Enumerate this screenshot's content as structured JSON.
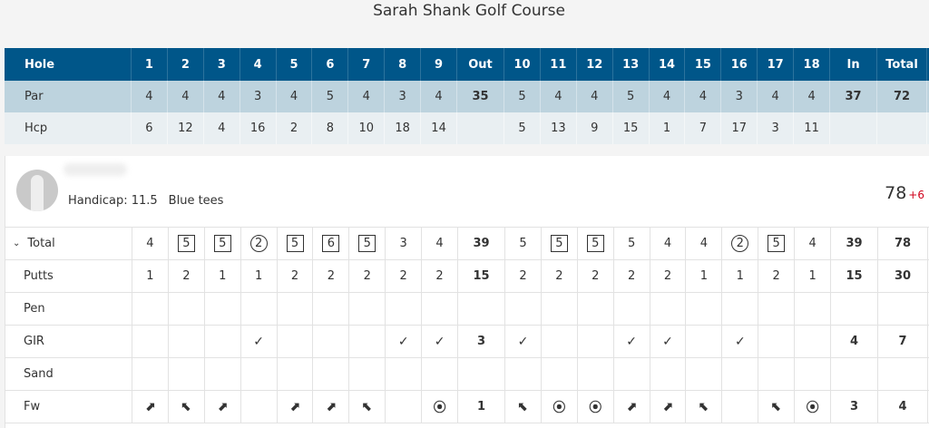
{
  "title": "Sarah Shank Golf Course",
  "colors": {
    "header": "#005689",
    "par_row": "#bdd3de",
    "hcp_row": "#e9eff2",
    "over_par": "#d0021b"
  },
  "course": {
    "header": [
      "Hole",
      "1",
      "2",
      "3",
      "4",
      "5",
      "6",
      "7",
      "8",
      "9",
      "Out",
      "10",
      "11",
      "12",
      "13",
      "14",
      "15",
      "16",
      "17",
      "18",
      "In",
      "Total"
    ],
    "par": [
      "Par",
      "4",
      "4",
      "4",
      "3",
      "4",
      "5",
      "4",
      "3",
      "4",
      "35",
      "5",
      "4",
      "4",
      "5",
      "4",
      "4",
      "3",
      "4",
      "4",
      "37",
      "72"
    ],
    "hcp": [
      "Hcp",
      "6",
      "12",
      "4",
      "16",
      "2",
      "8",
      "10",
      "18",
      "14",
      "",
      "5",
      "13",
      "9",
      "15",
      "1",
      "7",
      "17",
      "3",
      "11",
      "",
      ""
    ]
  },
  "player": {
    "handicap": "Handicap: 11.5",
    "tees": "Blue tees",
    "score": "78",
    "to_par": "+6"
  },
  "rows": [
    {
      "label": "Total",
      "collapsible": true,
      "cells": [
        {
          "v": "4"
        },
        {
          "v": "5",
          "m": "box"
        },
        {
          "v": "5",
          "m": "box"
        },
        {
          "v": "2",
          "m": "circle"
        },
        {
          "v": "5",
          "m": "box"
        },
        {
          "v": "6",
          "m": "box"
        },
        {
          "v": "5",
          "m": "box"
        },
        {
          "v": "3"
        },
        {
          "v": "4"
        },
        {
          "v": "39"
        },
        {
          "v": "5"
        },
        {
          "v": "5",
          "m": "box"
        },
        {
          "v": "5",
          "m": "box"
        },
        {
          "v": "5"
        },
        {
          "v": "4"
        },
        {
          "v": "4"
        },
        {
          "v": "2",
          "m": "circle"
        },
        {
          "v": "5",
          "m": "box"
        },
        {
          "v": "4"
        },
        {
          "v": "39"
        },
        {
          "v": "78"
        }
      ]
    },
    {
      "label": "Putts",
      "cells": [
        {
          "v": "1"
        },
        {
          "v": "2"
        },
        {
          "v": "1"
        },
        {
          "v": "1"
        },
        {
          "v": "2"
        },
        {
          "v": "2"
        },
        {
          "v": "2"
        },
        {
          "v": "2"
        },
        {
          "v": "2"
        },
        {
          "v": "15"
        },
        {
          "v": "2"
        },
        {
          "v": "2"
        },
        {
          "v": "2"
        },
        {
          "v": "2"
        },
        {
          "v": "2"
        },
        {
          "v": "1"
        },
        {
          "v": "1"
        },
        {
          "v": "2"
        },
        {
          "v": "1"
        },
        {
          "v": "15"
        },
        {
          "v": "30"
        }
      ]
    },
    {
      "label": "Pen",
      "cells": [
        {},
        {},
        {},
        {},
        {},
        {},
        {},
        {},
        {},
        {},
        {},
        {},
        {},
        {},
        {},
        {},
        {},
        {},
        {},
        {},
        {}
      ]
    },
    {
      "label": "GIR",
      "cells": [
        {},
        {},
        {},
        {
          "i": "check-icon"
        },
        {},
        {},
        {},
        {
          "i": "check-icon"
        },
        {
          "i": "check-icon"
        },
        {
          "v": "3"
        },
        {
          "i": "check-icon"
        },
        {},
        {},
        {
          "i": "check-icon"
        },
        {
          "i": "check-icon"
        },
        {},
        {
          "i": "check-icon"
        },
        {},
        {},
        {
          "v": "4"
        },
        {
          "v": "7"
        }
      ]
    },
    {
      "label": "Sand",
      "cells": [
        {},
        {},
        {},
        {},
        {},
        {},
        {},
        {},
        {},
        {},
        {},
        {},
        {},
        {},
        {},
        {},
        {},
        {},
        {},
        {},
        {}
      ]
    },
    {
      "label": "Fw",
      "cells": [
        {
          "i": "arrow-up-right-icon"
        },
        {
          "i": "arrow-up-left-icon"
        },
        {
          "i": "arrow-up-right-icon"
        },
        {},
        {
          "i": "arrow-up-right-icon"
        },
        {
          "i": "arrow-up-right-icon"
        },
        {
          "i": "arrow-up-left-icon"
        },
        {},
        {
          "i": "fairway-hit-icon"
        },
        {
          "v": "1"
        },
        {
          "i": "arrow-up-left-icon"
        },
        {
          "i": "fairway-hit-icon"
        },
        {
          "i": "fairway-hit-icon"
        },
        {
          "i": "arrow-up-right-icon"
        },
        {
          "i": "arrow-up-right-icon"
        },
        {
          "i": "arrow-up-left-icon"
        },
        {},
        {
          "i": "arrow-up-left-icon"
        },
        {
          "i": "fairway-hit-icon"
        },
        {
          "v": "3"
        },
        {
          "v": "4"
        }
      ]
    }
  ]
}
